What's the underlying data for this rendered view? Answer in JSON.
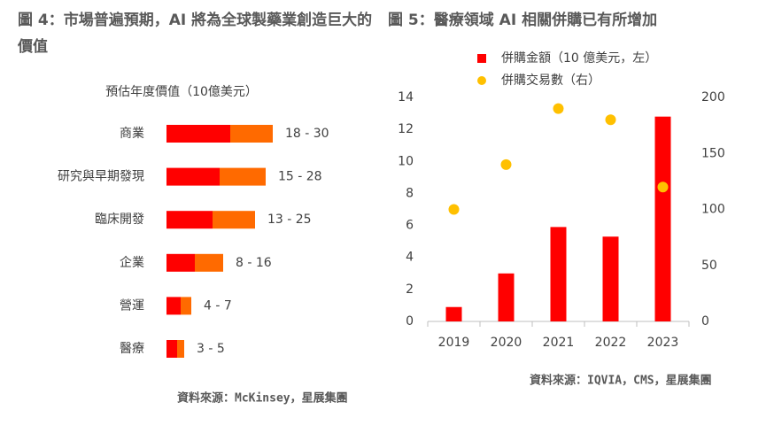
{
  "chart_data": [
    {
      "type": "bar",
      "horizontal": true,
      "title": "圖 4：市場普遍預期，AI 將為全球製藥業創造巨大的價值",
      "subtitle": "預估年度價值（10億美元）",
      "categories": [
        "商業",
        "研究與早期發現",
        "臨床開發",
        "企業",
        "營運",
        "醫療"
      ],
      "ranges": [
        [
          18,
          30
        ],
        [
          15,
          28
        ],
        [
          13,
          25
        ],
        [
          8,
          16
        ],
        [
          4,
          7
        ],
        [
          3,
          5
        ]
      ],
      "value_labels": [
        "18 - 30",
        "15 - 28",
        "13 - 25",
        "8 - 16",
        "4 - 7",
        "3 - 5"
      ],
      "colors": [
        "#ff0000",
        "#ff6a00"
      ],
      "source": "資料來源：McKinsey，星展集團"
    },
    {
      "type": "bar",
      "title": "圖 5：醫療領域 AI 相關併購已有所增加",
      "categories": [
        "2019",
        "2020",
        "2021",
        "2022",
        "2023"
      ],
      "series": [
        {
          "name": "併購金額（10 億美元，左）",
          "color": "#ff0000",
          "type": "bar",
          "values": [
            0.9,
            3.0,
            5.9,
            5.3,
            12.8
          ]
        },
        {
          "name": "併購交易數（右）",
          "color": "#ffc000",
          "type": "scatter",
          "axis": "y2",
          "values": [
            100,
            140,
            190,
            180,
            120
          ]
        }
      ],
      "ylim": [
        0,
        14
      ],
      "yticks": [
        0,
        2,
        4,
        6,
        8,
        10,
        12,
        14
      ],
      "y2lim": [
        0,
        200
      ],
      "y2ticks": [
        0,
        50,
        100,
        150,
        200
      ],
      "source": "資料來源：IQVIA，CMS，星展集團"
    }
  ]
}
